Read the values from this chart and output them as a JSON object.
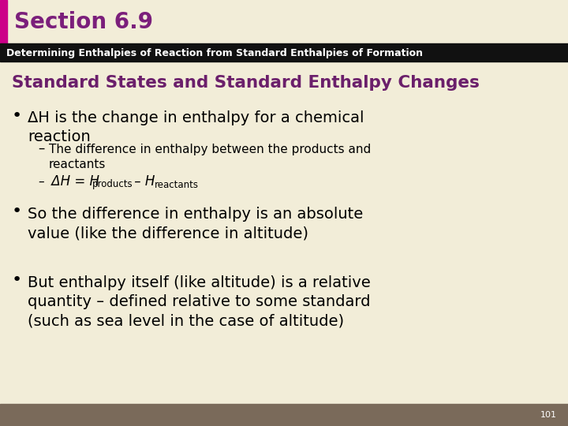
{
  "section_title": "Section 6.9",
  "section_title_color": "#7B1F7B",
  "section_bar_color": "#CC0088",
  "subtitle_bar_color": "#111111",
  "subtitle_text": "Determining Enthalpies of Reaction from Standard Enthalpies of Formation",
  "subtitle_text_color": "#FFFFFF",
  "slide_bg": "#F2EDD8",
  "footer_bar_color": "#7A6A5A",
  "footer_text": "101",
  "heading": "Standard States and Standard Enthalpy Changes",
  "heading_color": "#6B1F6B",
  "b1_bullet": "•",
  "b1_text": "ΔH is the change in enthalpy for a chemical\nreaction",
  "s1a_dash": "–",
  "s1a_text": "The difference in enthalpy between the products and\nreactants",
  "s1b_dash": "–",
  "s1b_part1": " ΔH = H",
  "s1b_sub1": "products",
  "s1b_part2": " – H",
  "s1b_sub2": "reactants",
  "b2_bullet": "•",
  "b2_text": "So the difference in enthalpy is an absolute\nvalue (like the difference in altitude)",
  "b3_bullet": "•",
  "b3_text": "But enthalpy itself (like altitude) is a relative\nquantity – defined relative to some standard\n(such as sea level in the case of altitude)"
}
